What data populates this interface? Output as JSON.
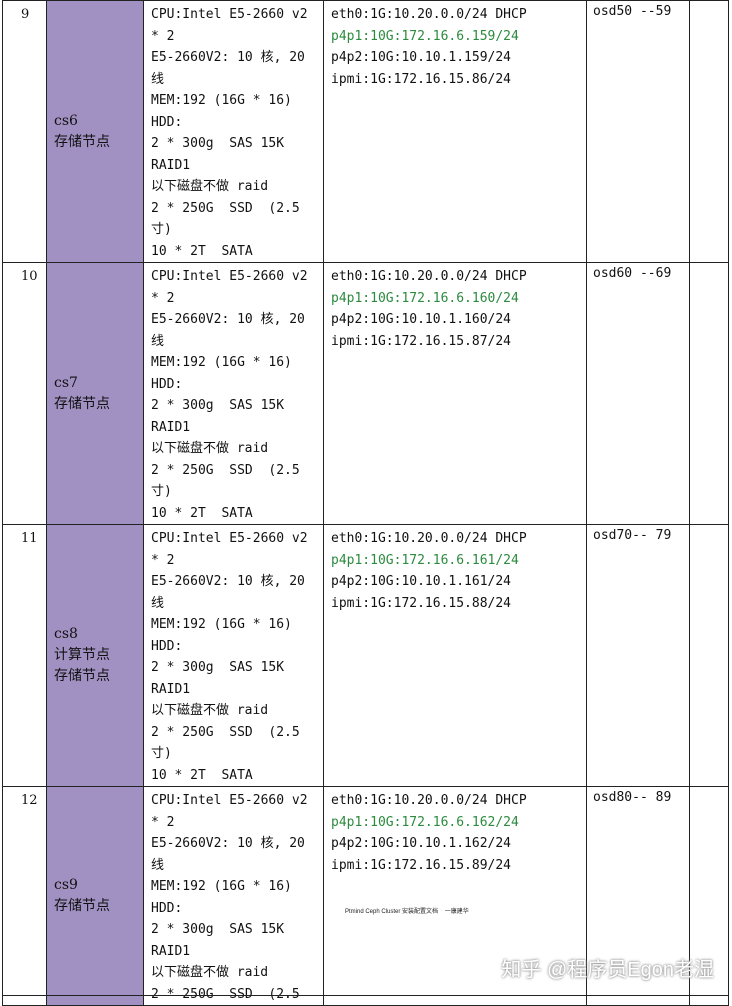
{
  "rows": [
    {
      "no": "9",
      "host": [
        "cs6",
        "存储节点"
      ],
      "hardware": [
        "CPU:Intel E5-2660 v2",
        "* 2",
        "E5-2660V2: 10 核, 20",
        "线",
        "MEM:192 (16G * 16)",
        "HDD:",
        "2 * 300g  SAS 15K",
        "RAID1",
        "以下磁盘不做 raid",
        "2 * 250G  SSD  (2.5",
        "寸)",
        "10 * 2T  SATA"
      ],
      "network": [
        "eth0:1G:10.20.0.0/24 DHCP",
        "p4p1:10G:172.16.6.159/24",
        "p4p2:10G:10.10.1.159/24",
        "ipmi:1G:172.16.15.86/24"
      ],
      "osd": "osd50 --59"
    },
    {
      "no": "10",
      "host": [
        "cs7",
        "存储节点"
      ],
      "hardware": [
        "CPU:Intel E5-2660 v2",
        "* 2",
        "E5-2660V2: 10 核, 20",
        "线",
        "MEM:192 (16G * 16)",
        "HDD:",
        "2 * 300g  SAS 15K",
        "RAID1",
        "以下磁盘不做 raid",
        "2 * 250G  SSD  (2.5",
        "寸)",
        "10 * 2T  SATA"
      ],
      "network": [
        "eth0:1G:10.20.0.0/24 DHCP",
        "p4p1:10G:172.16.6.160/24",
        "p4p2:10G:10.10.1.160/24",
        "ipmi:1G:172.16.15.87/24"
      ],
      "osd": "osd60 --69"
    },
    {
      "no": "11",
      "host": [
        "cs8",
        "计算节点",
        "存储节点"
      ],
      "hardware": [
        "CPU:Intel E5-2660 v2",
        "* 2",
        "E5-2660V2: 10 核, 20",
        "线",
        "MEM:192 (16G * 16)",
        "HDD:",
        "2 * 300g  SAS 15K",
        "RAID1",
        "以下磁盘不做 raid",
        "2 * 250G  SSD  (2.5",
        "寸)",
        "10 * 2T  SATA"
      ],
      "network": [
        "eth0:1G:10.20.0.0/24 DHCP",
        "p4p1:10G:172.16.6.161/24",
        "p4p2:10G:10.10.1.161/24",
        "ipmi:1G:172.16.15.88/24"
      ],
      "osd": "osd70-- 79"
    },
    {
      "no": "12",
      "host": [
        "cs9",
        "存储节点"
      ],
      "hardware": [
        "CPU:Intel E5-2660 v2",
        "* 2",
        "E5-2660V2: 10 核, 20",
        "线",
        "MEM:192 (16G * 16)",
        "HDD:",
        "2 * 300g  SAS 15K",
        "RAID1",
        "以下磁盘不做 raid",
        "2 * 250G  SSD  (2.5"
      ],
      "network": [
        "eth0:1G:10.20.0.0/24 DHCP",
        "p4p1:10G:172.16.6.162/24",
        "p4p2:10G:10.10.1.162/24",
        "ipmi:1G:172.16.15.89/24"
      ],
      "osd": "osd80-- 89",
      "caption": "Ptmind Ceph Cluster 安装配置文档    一康建华"
    }
  ],
  "green_line_index": 1,
  "colors": {
    "host_bg": "#a191c2",
    "green": "#2b8a3e"
  },
  "watermark": "知乎 @程序员Egon老湿"
}
